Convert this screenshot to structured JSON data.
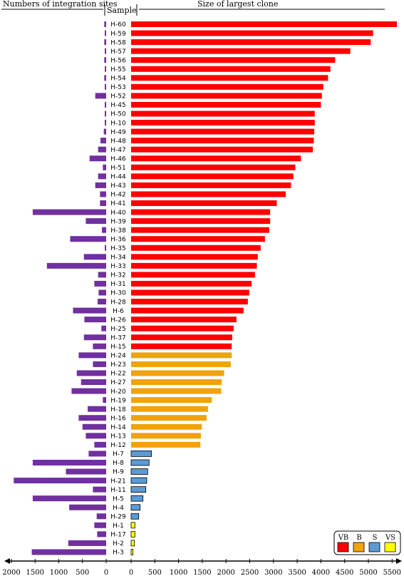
{
  "chart_data": {
    "type": "bar",
    "headers": {
      "left": "Numbers of integration sites",
      "sample": "Sample",
      "right": "Size of largest clone"
    },
    "left_axis": {
      "ticks": [
        "2000",
        "1500",
        "1000",
        "500",
        "0"
      ],
      "max": 2000
    },
    "right_axis": {
      "ticks": [
        "0",
        "500",
        "1000",
        "1500",
        "2000",
        "2500",
        "3000",
        "3500",
        "4000",
        "4500",
        "5000",
        "5500"
      ],
      "max": 5500
    },
    "legend": [
      {
        "key": "VB",
        "label": "VB",
        "color": "#ff0000"
      },
      {
        "key": "B",
        "label": "B",
        "color": "#f0a30a"
      },
      {
        "key": "S",
        "label": "S",
        "color": "#5b9bd5"
      },
      {
        "key": "VS",
        "label": "VS",
        "color": "#ffff00"
      }
    ],
    "colors": {
      "integration": "#7030a0"
    },
    "samples": [
      {
        "name": "H-60",
        "sites": 40,
        "clone": 5600,
        "group": "VB"
      },
      {
        "name": "H-59",
        "sites": 15,
        "clone": 5100,
        "group": "VB"
      },
      {
        "name": "H-58",
        "sites": 40,
        "clone": 5050,
        "group": "VB"
      },
      {
        "name": "H-57",
        "sites": 25,
        "clone": 4620,
        "group": "VB"
      },
      {
        "name": "H-56",
        "sites": 40,
        "clone": 4300,
        "group": "VB"
      },
      {
        "name": "H-55",
        "sites": 15,
        "clone": 4200,
        "group": "VB"
      },
      {
        "name": "H-54",
        "sites": 40,
        "clone": 4150,
        "group": "VB"
      },
      {
        "name": "H-53",
        "sites": 15,
        "clone": 4050,
        "group": "VB"
      },
      {
        "name": "H-52",
        "sites": 230,
        "clone": 4020,
        "group": "VB"
      },
      {
        "name": "H-45",
        "sites": 30,
        "clone": 4000,
        "group": "VB"
      },
      {
        "name": "H-50",
        "sites": 15,
        "clone": 3870,
        "group": "VB"
      },
      {
        "name": "H-10",
        "sites": 15,
        "clone": 3870,
        "group": "VB"
      },
      {
        "name": "H-49",
        "sites": 50,
        "clone": 3860,
        "group": "VB"
      },
      {
        "name": "H-48",
        "sites": 120,
        "clone": 3850,
        "group": "VB"
      },
      {
        "name": "H-47",
        "sites": 170,
        "clone": 3830,
        "group": "VB"
      },
      {
        "name": "H-46",
        "sites": 350,
        "clone": 3580,
        "group": "VB"
      },
      {
        "name": "H-51",
        "sites": 70,
        "clone": 3460,
        "group": "VB"
      },
      {
        "name": "H-44",
        "sites": 170,
        "clone": 3420,
        "group": "VB"
      },
      {
        "name": "H-43",
        "sites": 230,
        "clone": 3370,
        "group": "VB"
      },
      {
        "name": "H-42",
        "sites": 130,
        "clone": 3260,
        "group": "VB"
      },
      {
        "name": "H-41",
        "sites": 130,
        "clone": 3070,
        "group": "VB"
      },
      {
        "name": "H-40",
        "sites": 1550,
        "clone": 2930,
        "group": "VB"
      },
      {
        "name": "H-39",
        "sites": 430,
        "clone": 2930,
        "group": "VB"
      },
      {
        "name": "H-38",
        "sites": 90,
        "clone": 2910,
        "group": "VB"
      },
      {
        "name": "H-36",
        "sites": 760,
        "clone": 2820,
        "group": "VB"
      },
      {
        "name": "H-35",
        "sites": 30,
        "clone": 2730,
        "group": "VB"
      },
      {
        "name": "H-34",
        "sites": 470,
        "clone": 2670,
        "group": "VB"
      },
      {
        "name": "H-33",
        "sites": 1250,
        "clone": 2650,
        "group": "VB"
      },
      {
        "name": "H-32",
        "sites": 170,
        "clone": 2610,
        "group": "VB"
      },
      {
        "name": "H-31",
        "sites": 250,
        "clone": 2540,
        "group": "VB"
      },
      {
        "name": "H-30",
        "sites": 160,
        "clone": 2490,
        "group": "VB"
      },
      {
        "name": "H-28",
        "sites": 180,
        "clone": 2460,
        "group": "VB"
      },
      {
        "name": "H-6",
        "sites": 700,
        "clone": 2370,
        "group": "VB"
      },
      {
        "name": "H-26",
        "sites": 460,
        "clone": 2220,
        "group": "VB"
      },
      {
        "name": "H-25",
        "sites": 100,
        "clone": 2160,
        "group": "VB"
      },
      {
        "name": "H-37",
        "sites": 470,
        "clone": 2130,
        "group": "VB"
      },
      {
        "name": "H-15",
        "sites": 280,
        "clone": 2120,
        "group": "VB"
      },
      {
        "name": "H-24",
        "sites": 580,
        "clone": 2120,
        "group": "B"
      },
      {
        "name": "H-23",
        "sites": 280,
        "clone": 2100,
        "group": "B"
      },
      {
        "name": "H-22",
        "sites": 620,
        "clone": 1960,
        "group": "B"
      },
      {
        "name": "H-27",
        "sites": 530,
        "clone": 1910,
        "group": "B"
      },
      {
        "name": "H-20",
        "sites": 730,
        "clone": 1900,
        "group": "B"
      },
      {
        "name": "H-19",
        "sites": 70,
        "clone": 1700,
        "group": "B"
      },
      {
        "name": "H-18",
        "sites": 390,
        "clone": 1620,
        "group": "B"
      },
      {
        "name": "H-16",
        "sites": 580,
        "clone": 1590,
        "group": "B"
      },
      {
        "name": "H-14",
        "sites": 500,
        "clone": 1490,
        "group": "B"
      },
      {
        "name": "H-13",
        "sites": 430,
        "clone": 1470,
        "group": "B"
      },
      {
        "name": "H-12",
        "sites": 250,
        "clone": 1460,
        "group": "B"
      },
      {
        "name": "H-7",
        "sites": 370,
        "clone": 430,
        "group": "S"
      },
      {
        "name": "H-8",
        "sites": 1550,
        "clone": 380,
        "group": "S"
      },
      {
        "name": "H-9",
        "sites": 850,
        "clone": 350,
        "group": "S"
      },
      {
        "name": "H-21",
        "sites": 1950,
        "clone": 330,
        "group": "S"
      },
      {
        "name": "H-11",
        "sites": 280,
        "clone": 310,
        "group": "S"
      },
      {
        "name": "H-5",
        "sites": 1550,
        "clone": 250,
        "group": "S"
      },
      {
        "name": "H-4",
        "sites": 780,
        "clone": 190,
        "group": "S"
      },
      {
        "name": "H-29",
        "sites": 200,
        "clone": 160,
        "group": "S"
      },
      {
        "name": "H-1",
        "sites": 250,
        "clone": 80,
        "group": "VS"
      },
      {
        "name": "H-17",
        "sites": 190,
        "clone": 80,
        "group": "VS"
      },
      {
        "name": "H-2",
        "sites": 800,
        "clone": 70,
        "group": "VS"
      },
      {
        "name": "H-3",
        "sites": 1570,
        "clone": 40,
        "group": "VS"
      }
    ]
  }
}
